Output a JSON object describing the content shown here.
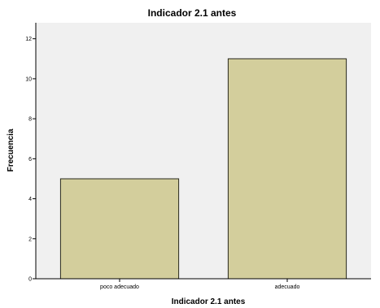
{
  "colors": {
    "plot_background": "#f0f0f0",
    "bar_fill": "#d3ce9c",
    "bar_stroke": "#2a2a1e",
    "axis": "#000000"
  },
  "chart_data": {
    "type": "bar",
    "title": "Indicador 2.1 antes",
    "xlabel": "Indicador 2.1 antes",
    "ylabel": "Frecuencia",
    "categories": [
      "poco adecuado",
      "adecuado"
    ],
    "values": [
      5,
      11
    ],
    "ylim": [
      0,
      12.8
    ],
    "yticks": [
      0,
      2,
      4,
      6,
      8,
      10,
      12
    ],
    "grid": false,
    "legend": "none"
  }
}
